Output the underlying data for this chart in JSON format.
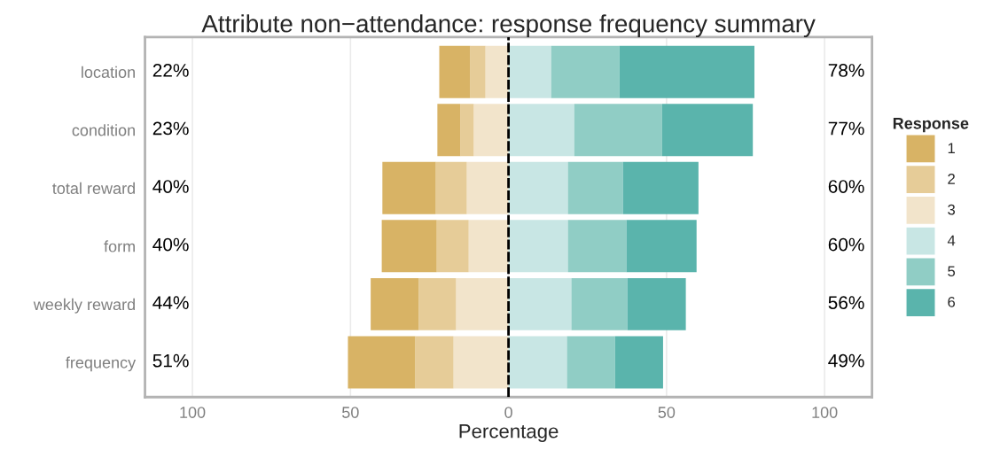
{
  "chart_data": {
    "type": "bar",
    "orientation": "horizontal",
    "stacked": true,
    "title": "Attribute non−attendance: response frequency summary",
    "xlabel": "Percentage",
    "legend_title": "Response",
    "categories": [
      "location",
      "condition",
      "total reward",
      "form",
      "weekly reward",
      "frequency"
    ],
    "series": [
      {
        "name": "3",
        "color": "#f2e4cb",
        "values": [
          -7.3,
          -11.0,
          -13.2,
          -12.6,
          -16.6,
          -17.4
        ]
      },
      {
        "name": "2",
        "color": "#e6cc98",
        "values": [
          -4.8,
          -4.2,
          -9.8,
          -10.1,
          -11.8,
          -12.1
        ]
      },
      {
        "name": "1",
        "color": "#d8b365",
        "values": [
          -9.8,
          -7.3,
          -16.9,
          -17.4,
          -15.2,
          -21.3
        ]
      },
      {
        "name": "4",
        "color": "#c8e6e4",
        "values": [
          13.5,
          20.8,
          18.8,
          18.8,
          19.9,
          18.5
        ]
      },
      {
        "name": "5",
        "color": "#90cdc5",
        "values": [
          21.6,
          27.8,
          17.4,
          18.5,
          17.7,
          15.2
        ]
      },
      {
        "name": "6",
        "color": "#5ab4ac",
        "values": [
          42.7,
          28.7,
          23.9,
          22.2,
          18.5,
          15.2
        ]
      }
    ],
    "xlim": [
      -115,
      115
    ],
    "xticks": [
      {
        "value": -100,
        "label": "100"
      },
      {
        "value": -50,
        "label": "50"
      },
      0,
      {
        "value": 50,
        "label": "50"
      },
      {
        "value": 100,
        "label": "100"
      }
    ],
    "ref_lines": [
      {
        "axis": "x",
        "value": 0,
        "color": "#000000",
        "line_style": "dashed"
      }
    ],
    "annotations": [
      "22%",
      "78%",
      "23%",
      "77%",
      "40%",
      "60%",
      "40%",
      "60%",
      "44%",
      "56%",
      "51%",
      "49%"
    ],
    "grid": "x",
    "legend": "right"
  }
}
